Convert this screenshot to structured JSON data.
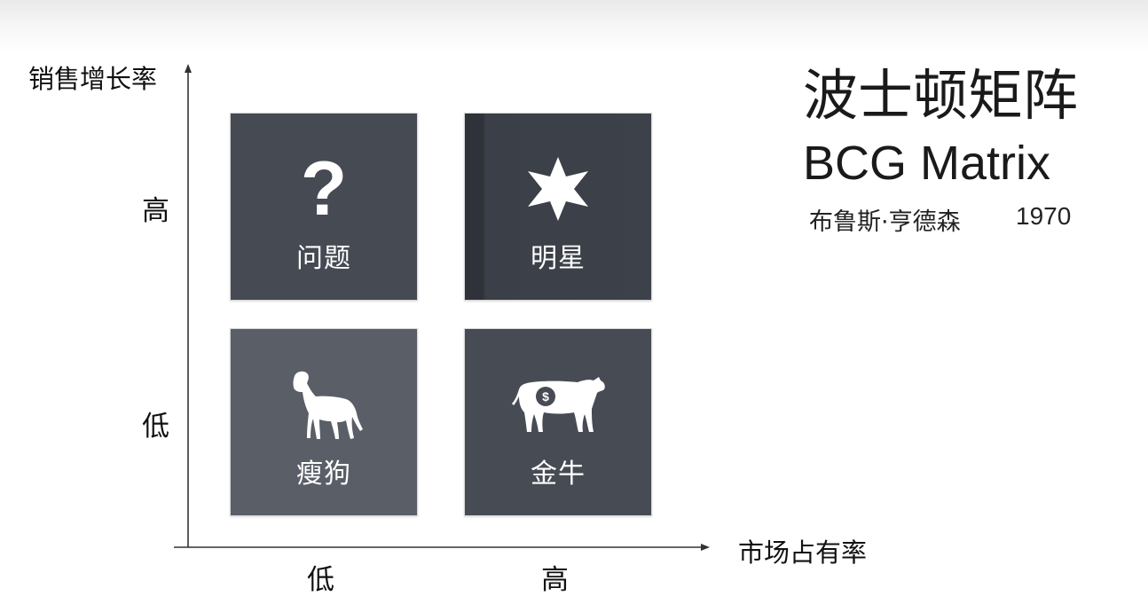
{
  "title": {
    "chinese": "波士顿矩阵",
    "english": "BCG Matrix",
    "author": "布鲁斯·亨德森",
    "year": "1970"
  },
  "axes": {
    "y_title": "销售增长率",
    "x_title": "市场占有率",
    "y_ticks": {
      "high": "高",
      "low": "低"
    },
    "x_ticks": {
      "low": "低",
      "high": "高"
    }
  },
  "quadrants": [
    {
      "id": "question",
      "label": "问题",
      "icon": "question-mark-icon",
      "color": "#454a53",
      "symbol": "?"
    },
    {
      "id": "star",
      "label": "明星",
      "icon": "star-icon",
      "color": "#3d414a"
    },
    {
      "id": "dog",
      "label": "瘦狗",
      "icon": "dog-icon",
      "color": "#5a5e66"
    },
    {
      "id": "cow",
      "label": "金牛",
      "icon": "cash-cow-icon",
      "color": "#474b53",
      "symbol": "$"
    }
  ]
}
